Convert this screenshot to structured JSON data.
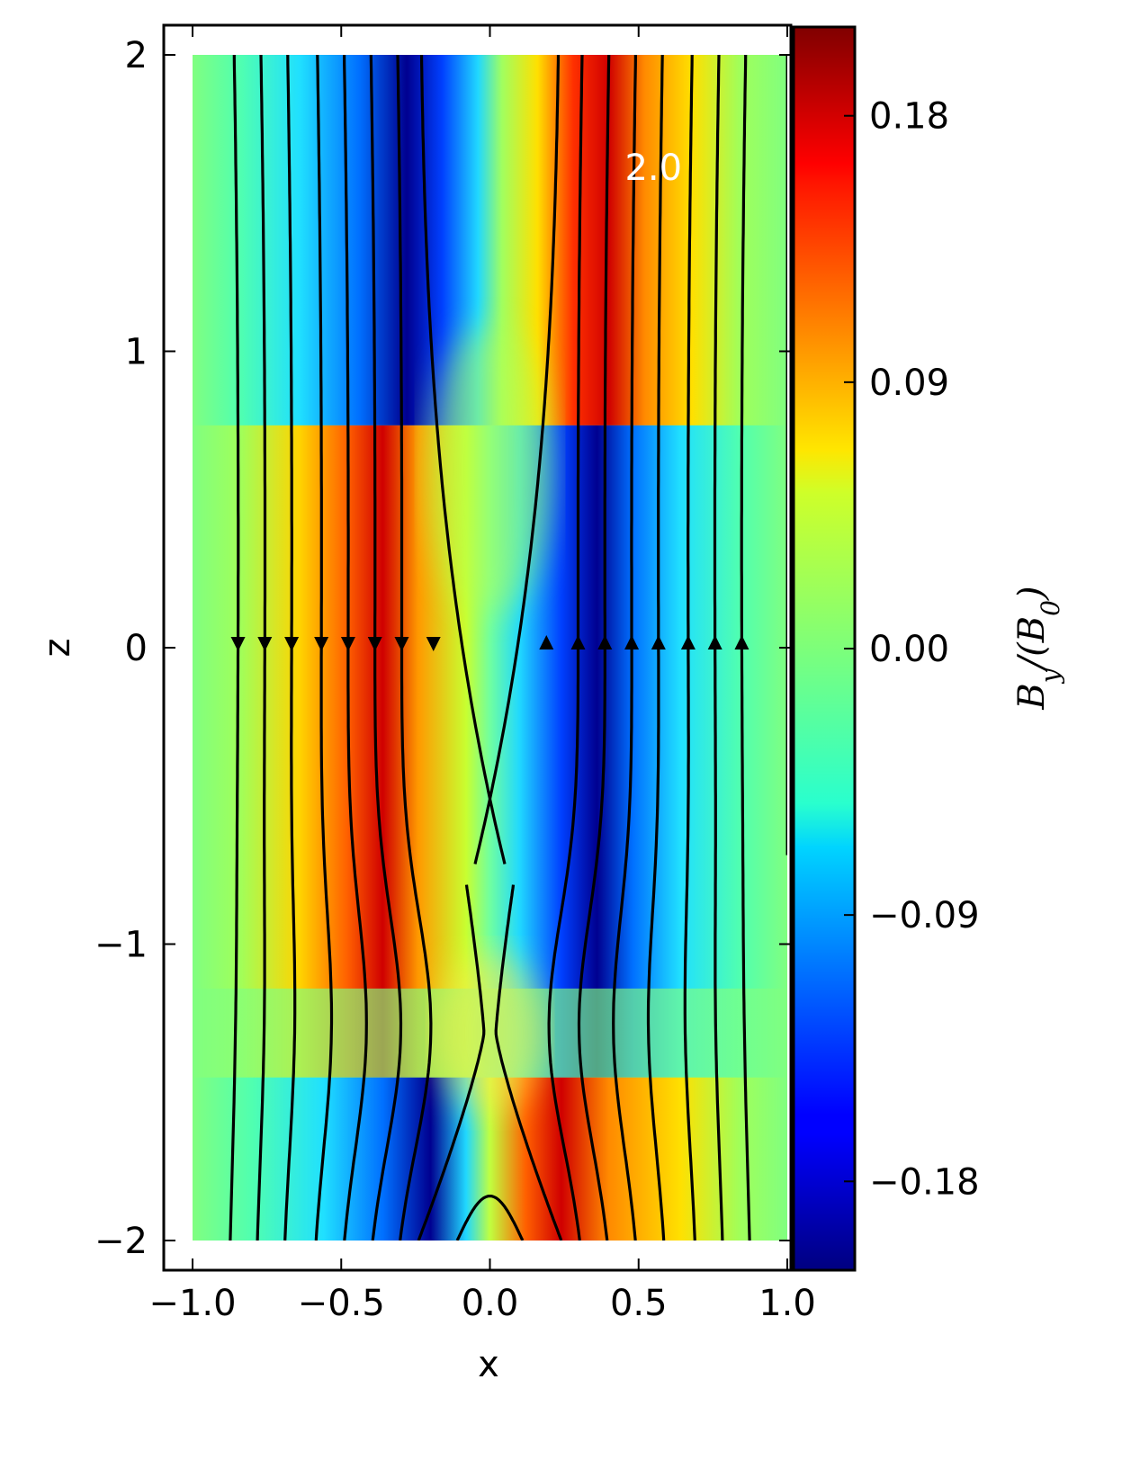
{
  "chart_data": {
    "type": "heatmap",
    "title": "",
    "xlabel": "x",
    "ylabel": "z",
    "xlim": [
      -1.05,
      1.02
    ],
    "ylim": [
      -2.1,
      2.1
    ],
    "x_ticks": [
      -1.0,
      -0.5,
      0.0,
      0.5,
      1.0
    ],
    "x_tick_labels": [
      "−1.0",
      "−0.5",
      "0.0",
      "0.5",
      "1.0"
    ],
    "y_ticks": [
      -2,
      -1,
      0,
      1,
      2
    ],
    "y_tick_labels": [
      "−2",
      "−1",
      "0",
      "1",
      "2"
    ],
    "data_extent": {
      "x": [
        -1.0,
        1.0
      ],
      "z": [
        -2.0,
        2.0
      ]
    },
    "colormap": "jet",
    "colorbar": {
      "label": "B_y/(B_0)",
      "label_parts": {
        "b": "B",
        "y": "y",
        "slash": "/(",
        "b0": "B",
        "zero": "0",
        "close": ")"
      },
      "range": [
        -0.21,
        0.21
      ],
      "ticks": [
        0.18,
        0.09,
        0.0,
        -0.09,
        -0.18
      ],
      "tick_labels": [
        "0.18",
        "0.09",
        "0.00",
        "−0.09",
        "−0.18"
      ]
    },
    "field_description": "By: positive (red) lobe along x≈-0.25 for z in [-1.3,0], negative (blue) lobe along x≈+0.25 for z in [-1.3,0]; reversed sign above z≈0.5 and below z≈-1.3; X-point near (0,-1.3)",
    "annotation": {
      "text": "2.0",
      "x": 0.55,
      "z": 1.62
    },
    "field_line_seeds_x": [
      -0.86,
      -0.77,
      -0.68,
      -0.58,
      -0.49,
      -0.4,
      -0.31,
      -0.19,
      0.19,
      0.31,
      0.4,
      0.49,
      0.58,
      0.68,
      0.77,
      0.86
    ],
    "field_line_arrows": {
      "z": 0.0,
      "left_direction": "down",
      "right_direction": "up"
    }
  }
}
